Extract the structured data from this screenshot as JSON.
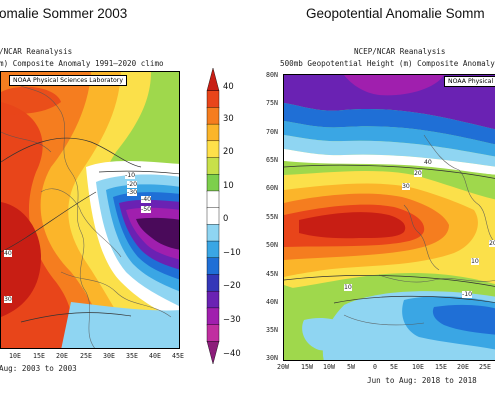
{
  "left_panel": {
    "title": "omalie Sommer 2003",
    "source": "/NCAR Reanalysis",
    "subtitle": "m) Composite Anomaly 1991–2020 climo",
    "lab_badge": "NOAA Physical Sciences Laboratory",
    "lon_ticks": [
      "10E",
      "15E",
      "20E",
      "25E",
      "30E",
      "35E",
      "40E",
      "45E"
    ],
    "period": "Aug: 2003 to 2003",
    "contour_labels": [
      "-10",
      "-20",
      "-30",
      "-40",
      "-50",
      "40",
      "30"
    ]
  },
  "right_panel": {
    "title": "Geopotential Anomalie Somm",
    "source": "NCEP/NCAR Reanalysis",
    "subtitle": "500mb Geopotential Height (m) Composite Anomaly",
    "lab_badge": "NOAA Physical",
    "lat_ticks": [
      "80N",
      "75N",
      "70N",
      "65N",
      "60N",
      "55N",
      "50N",
      "45N",
      "40N",
      "35N",
      "30N"
    ],
    "lon_ticks": [
      "20W",
      "15W",
      "10W",
      "5W",
      "0",
      "5E",
      "10E",
      "15E",
      "20E",
      "25E"
    ],
    "period": "Jun to Aug: 2018 to 2018",
    "contour_labels": [
      "40",
      "20",
      "30",
      "10",
      "-10",
      "20",
      "10"
    ]
  },
  "colorbar": {
    "ticks": [
      "40",
      "30",
      "20",
      "10",
      "0",
      "−10",
      "−20",
      "−30",
      "−40"
    ],
    "colors": [
      "#c81e14",
      "#e8451a",
      "#f57d1f",
      "#fbb52a",
      "#ffe04a",
      "#c8e04a",
      "#7dcf4c",
      "#ffffff",
      "#ffffff",
      "#8fd5f2",
      "#3aa6e4",
      "#1f6fd6",
      "#3437b8",
      "#6a22b3",
      "#a01fae",
      "#c02fa0",
      "#8c1d7a"
    ]
  }
}
